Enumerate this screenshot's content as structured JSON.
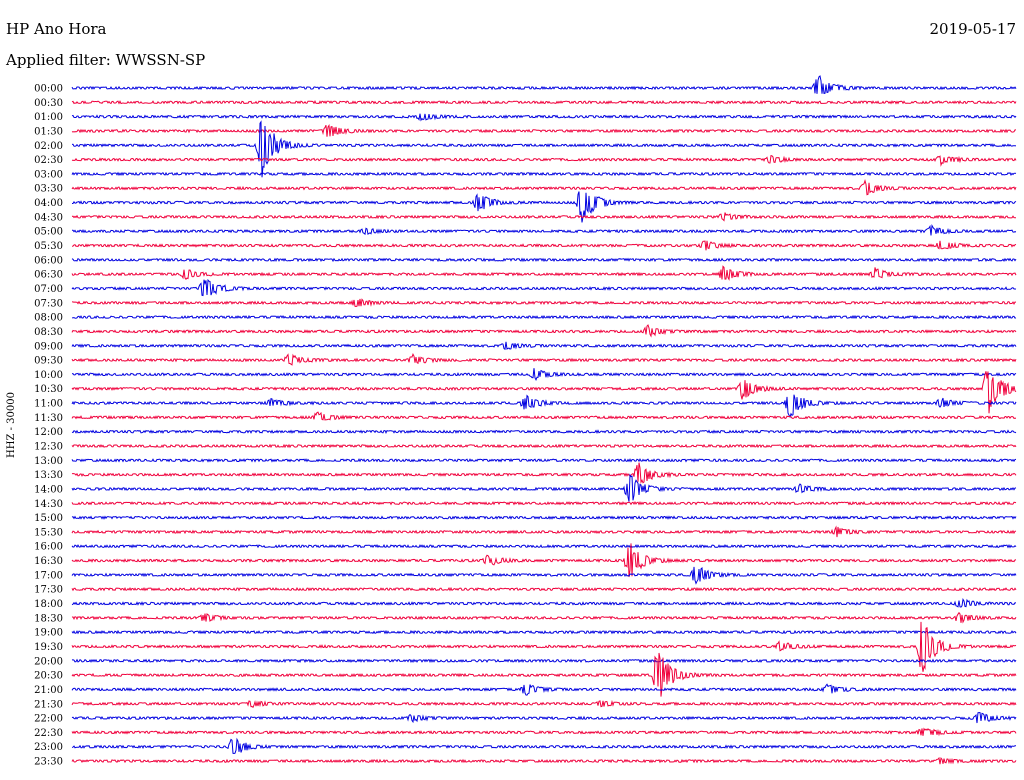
{
  "header": {
    "station": "HP Ano Hora",
    "date": "2019-05-17",
    "filter_label": "Applied filter: WWSSN-SP"
  },
  "chart_data": {
    "type": "line",
    "ylabel": "HHZ - 30000",
    "colors": [
      "#0000e0",
      "#f0003c"
    ],
    "rows": [
      {
        "time": "00:00",
        "events": [
          [
            0.79,
            14
          ]
        ]
      },
      {
        "time": "00:30",
        "events": []
      },
      {
        "time": "01:00",
        "events": [
          [
            0.37,
            4
          ]
        ]
      },
      {
        "time": "01:30",
        "events": [
          [
            0.27,
            8
          ]
        ]
      },
      {
        "time": "02:00",
        "events": [
          [
            0.2,
            35
          ]
        ]
      },
      {
        "time": "02:30",
        "events": [
          [
            0.74,
            4
          ],
          [
            0.92,
            5
          ]
        ]
      },
      {
        "time": "03:00",
        "events": []
      },
      {
        "time": "03:30",
        "events": [
          [
            0.84,
            8
          ]
        ]
      },
      {
        "time": "04:00",
        "events": [
          [
            0.43,
            10
          ],
          [
            0.54,
            24
          ]
        ]
      },
      {
        "time": "04:30",
        "events": [
          [
            0.69,
            4
          ]
        ]
      },
      {
        "time": "05:00",
        "events": [
          [
            0.31,
            3
          ],
          [
            0.91,
            5
          ]
        ]
      },
      {
        "time": "05:30",
        "events": [
          [
            0.67,
            5
          ],
          [
            0.92,
            5
          ]
        ]
      },
      {
        "time": "06:00",
        "events": []
      },
      {
        "time": "06:30",
        "events": [
          [
            0.12,
            5
          ],
          [
            0.69,
            8
          ],
          [
            0.85,
            6
          ]
        ]
      },
      {
        "time": "07:00",
        "events": [
          [
            0.14,
            13
          ]
        ]
      },
      {
        "time": "07:30",
        "events": [
          [
            0.3,
            5
          ]
        ]
      },
      {
        "time": "08:00",
        "events": []
      },
      {
        "time": "08:30",
        "events": [
          [
            0.61,
            6
          ]
        ]
      },
      {
        "time": "09:00",
        "events": [
          [
            0.46,
            4
          ]
        ]
      },
      {
        "time": "09:30",
        "events": [
          [
            0.23,
            6
          ],
          [
            0.36,
            6
          ]
        ]
      },
      {
        "time": "10:00",
        "events": [
          [
            0.49,
            6
          ]
        ]
      },
      {
        "time": "10:30",
        "events": [
          [
            0.71,
            12
          ],
          [
            0.97,
            28
          ]
        ]
      },
      {
        "time": "11:00",
        "events": [
          [
            0.21,
            4
          ],
          [
            0.48,
            8
          ],
          [
            0.76,
            16
          ],
          [
            0.92,
            5
          ]
        ]
      },
      {
        "time": "11:30",
        "events": [
          [
            0.26,
            5
          ]
        ]
      },
      {
        "time": "12:00",
        "events": []
      },
      {
        "time": "12:30",
        "events": []
      },
      {
        "time": "13:00",
        "events": []
      },
      {
        "time": "13:30",
        "events": [
          [
            0.6,
            12
          ]
        ]
      },
      {
        "time": "14:00",
        "events": [
          [
            0.59,
            16
          ],
          [
            0.77,
            5
          ]
        ]
      },
      {
        "time": "14:30",
        "events": []
      },
      {
        "time": "15:00",
        "events": []
      },
      {
        "time": "15:30",
        "events": [
          [
            0.81,
            5
          ]
        ]
      },
      {
        "time": "16:00",
        "events": []
      },
      {
        "time": "16:30",
        "events": [
          [
            0.44,
            6
          ],
          [
            0.59,
            20
          ]
        ]
      },
      {
        "time": "17:00",
        "events": [
          [
            0.66,
            11
          ]
        ]
      },
      {
        "time": "17:30",
        "events": []
      },
      {
        "time": "18:00",
        "events": [
          [
            0.94,
            5
          ]
        ]
      },
      {
        "time": "18:30",
        "events": [
          [
            0.14,
            4
          ],
          [
            0.94,
            5
          ]
        ]
      },
      {
        "time": "19:00",
        "events": []
      },
      {
        "time": "19:30",
        "events": [
          [
            0.75,
            5
          ],
          [
            0.9,
            30
          ]
        ]
      },
      {
        "time": "20:00",
        "events": []
      },
      {
        "time": "20:30",
        "events": [
          [
            0.62,
            30
          ]
        ]
      },
      {
        "time": "21:00",
        "events": [
          [
            0.48,
            6
          ],
          [
            0.8,
            5
          ]
        ]
      },
      {
        "time": "21:30",
        "events": [
          [
            0.19,
            3
          ],
          [
            0.56,
            3
          ]
        ]
      },
      {
        "time": "22:00",
        "events": [
          [
            0.36,
            4
          ],
          [
            0.96,
            6
          ]
        ]
      },
      {
        "time": "22:30",
        "events": [
          [
            0.9,
            5
          ]
        ]
      },
      {
        "time": "23:00",
        "events": [
          [
            0.17,
            10
          ]
        ]
      },
      {
        "time": "23:30",
        "events": [
          [
            0.92,
            3
          ]
        ]
      }
    ]
  }
}
